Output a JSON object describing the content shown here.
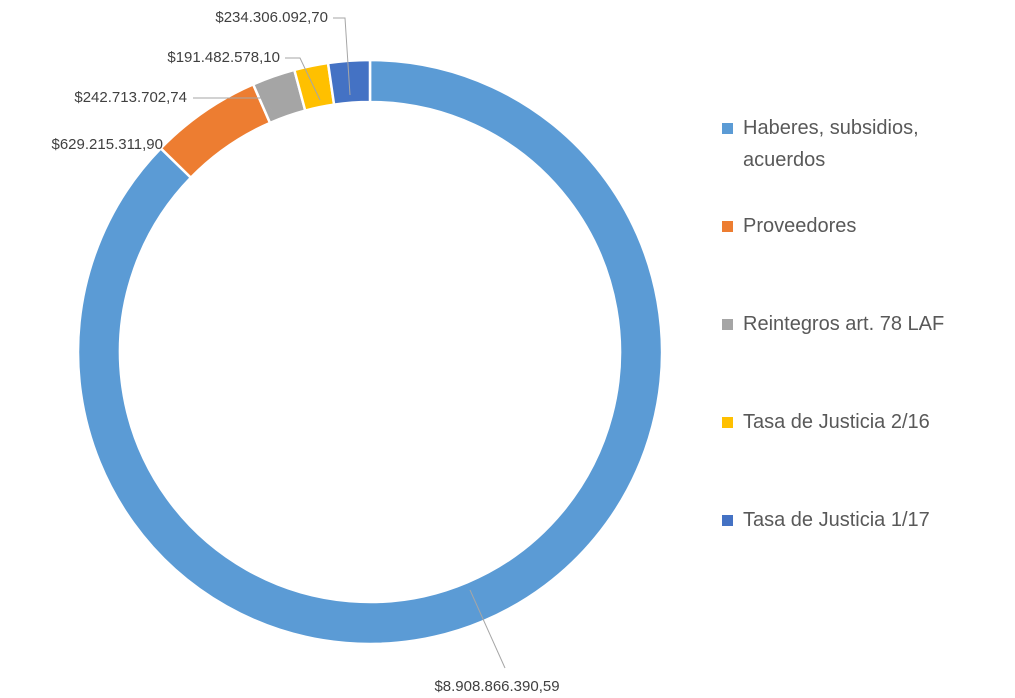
{
  "chart_data": {
    "type": "donut",
    "categories": [
      "Haberes, subsidios, acuerdos",
      "Proveedores",
      "Reintegros art. 78 LAF",
      "Tasa de Justicia 2/16",
      "Tasa de Justicia 1/17"
    ],
    "values": [
      8908866390.59,
      629215311.9,
      242713702.74,
      191482578.1,
      234306092.7
    ],
    "value_labels": [
      "$8.908.866.390,59",
      "$629.215.311,90",
      "$242.713.702,74",
      "$191.482.578,10",
      "$234.306.092,70"
    ],
    "colors": [
      "#5b9bd5",
      "#ed7d31",
      "#a5a5a5",
      "#ffc000",
      "#4472c4"
    ],
    "legend": "right"
  }
}
